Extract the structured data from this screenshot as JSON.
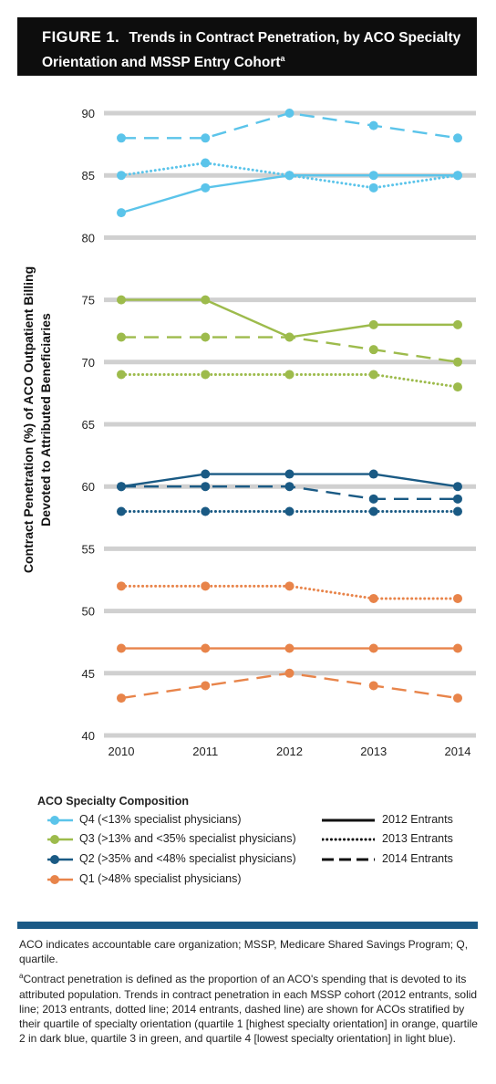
{
  "title": {
    "figure_label": "FIGURE 1.",
    "text": "Trends in Contract Penetration, by ACO Specialty Orientation and MSSP Entry Cohort",
    "superscript": "a"
  },
  "chart_data": {
    "type": "line",
    "ylabel_line1": "Contract Penetration (%) of ACO Outpatient Billing",
    "ylabel_line2": "Devoted to Attributed Beneficiaries",
    "xlabel": "",
    "x": [
      "2010",
      "2011",
      "2012",
      "2013",
      "2014"
    ],
    "ylim": [
      40,
      90
    ],
    "yticks": [
      "40",
      "45",
      "50",
      "55",
      "60",
      "65",
      "70",
      "75",
      "80",
      "85",
      "90"
    ],
    "grid": true,
    "series": [
      {
        "group": "Q4",
        "cohort": "2012 Entrants",
        "color": "#5bc4ea",
        "style": "solid",
        "values": [
          82,
          84,
          85,
          85,
          85
        ]
      },
      {
        "group": "Q4",
        "cohort": "2013 Entrants",
        "color": "#5bc4ea",
        "style": "dotted",
        "values": [
          85,
          86,
          85,
          84,
          85
        ]
      },
      {
        "group": "Q4",
        "cohort": "2014 Entrants",
        "color": "#5bc4ea",
        "style": "dashed",
        "values": [
          88,
          88,
          90,
          89,
          88
        ]
      },
      {
        "group": "Q3",
        "cohort": "2012 Entrants",
        "color": "#9dbb4c",
        "style": "solid",
        "values": [
          75,
          75,
          72,
          73,
          73
        ]
      },
      {
        "group": "Q3",
        "cohort": "2013 Entrants",
        "color": "#9dbb4c",
        "style": "dotted",
        "values": [
          69,
          69,
          69,
          69,
          68
        ]
      },
      {
        "group": "Q3",
        "cohort": "2014 Entrants",
        "color": "#9dbb4c",
        "style": "dashed",
        "values": [
          72,
          72,
          72,
          71,
          70
        ]
      },
      {
        "group": "Q2",
        "cohort": "2012 Entrants",
        "color": "#1a5a84",
        "style": "solid",
        "values": [
          60,
          61,
          61,
          61,
          60
        ]
      },
      {
        "group": "Q2",
        "cohort": "2013 Entrants",
        "color": "#1a5a84",
        "style": "dotted",
        "values": [
          58,
          58,
          58,
          58,
          58
        ]
      },
      {
        "group": "Q2",
        "cohort": "2014 Entrants",
        "color": "#1a5a84",
        "style": "dashed",
        "values": [
          60,
          60,
          60,
          59,
          59
        ]
      },
      {
        "group": "Q1",
        "cohort": "2012 Entrants",
        "color": "#e8844a",
        "style": "solid",
        "values": [
          47,
          47,
          47,
          47,
          47
        ]
      },
      {
        "group": "Q1",
        "cohort": "2013 Entrants",
        "color": "#e8844a",
        "style": "dotted",
        "values": [
          52,
          52,
          52,
          51,
          51
        ]
      },
      {
        "group": "Q1",
        "cohort": "2014 Entrants",
        "color": "#e8844a",
        "style": "dashed",
        "values": [
          43,
          44,
          45,
          44,
          43
        ]
      }
    ]
  },
  "legend": {
    "title": "ACO Specialty Composition",
    "groups": [
      {
        "label": "Q4 (<13% specialist physicians)",
        "color": "#5bc4ea"
      },
      {
        "label": "Q3 (>13% and <35% specialist physicians)",
        "color": "#9dbb4c"
      },
      {
        "label": "Q2 (>35% and <48% specialist physicians)",
        "color": "#1a5a84"
      },
      {
        "label": "Q1 (>48% specialist physicians)",
        "color": "#e8844a"
      }
    ],
    "styles": [
      {
        "label": "2012 Entrants",
        "style": "solid"
      },
      {
        "label": "2013 Entrants",
        "style": "dotted"
      },
      {
        "label": "2014 Entrants",
        "style": "dashed"
      }
    ]
  },
  "notes": {
    "abbrev": "ACO indicates accountable care organization; MSSP, Medicare Shared Savings Program; Q, quartile.",
    "footnote_mark": "a",
    "footnote": "Contract penetration is defined as the proportion of an ACO's spending that is devoted to its attributed population. Trends in contract penetration in each MSSP cohort (2012 entrants, solid line; 2013 entrants, dotted line; 2014 entrants, dashed line) are shown for ACOs stratified by their quartile of specialty orientation (quartile 1 [highest specialty orientation] in orange, quartile 2 in dark blue, quartile 3 in green, and quartile 4 [lowest specialty orientation] in light blue)."
  }
}
